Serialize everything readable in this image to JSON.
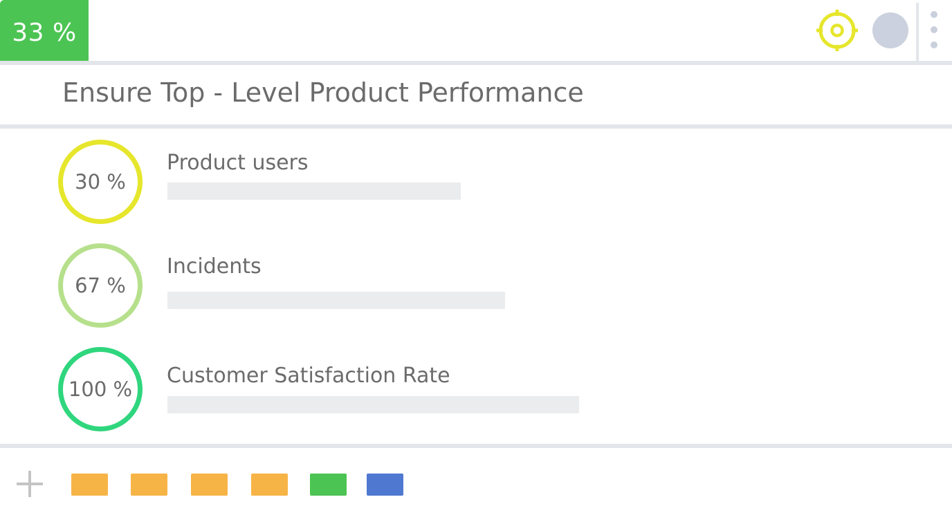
{
  "header": {
    "progress_label": "33 %",
    "progress_color": "#4cc453",
    "target_icon": "target-icon",
    "target_color": "#e6e62c",
    "avatar_color": "#cbd1de",
    "menu_icon": "kebab-menu-icon"
  },
  "objective": {
    "title": "Ensure Top - Level Product Performance"
  },
  "key_results": [
    {
      "name": "Product users",
      "progress_label": "30 %",
      "progress": 0.3,
      "ring_color": "#e6e62c"
    },
    {
      "name": "Incidents",
      "progress_label": "67 %",
      "progress": 0.67,
      "ring_color": "#b6e08c"
    },
    {
      "name": "Customer Satisfaction Rate",
      "progress_label": "100 %",
      "progress": 1.0,
      "ring_color": "#2fd67d"
    }
  ],
  "footer": {
    "add_icon": "plus-icon",
    "chips": [
      {
        "color": "#f7b446"
      },
      {
        "color": "#f7b446"
      },
      {
        "color": "#f7b446"
      },
      {
        "color": "#f7b446"
      },
      {
        "color": "#4cc453"
      },
      {
        "color": "#4f78d0"
      }
    ]
  }
}
